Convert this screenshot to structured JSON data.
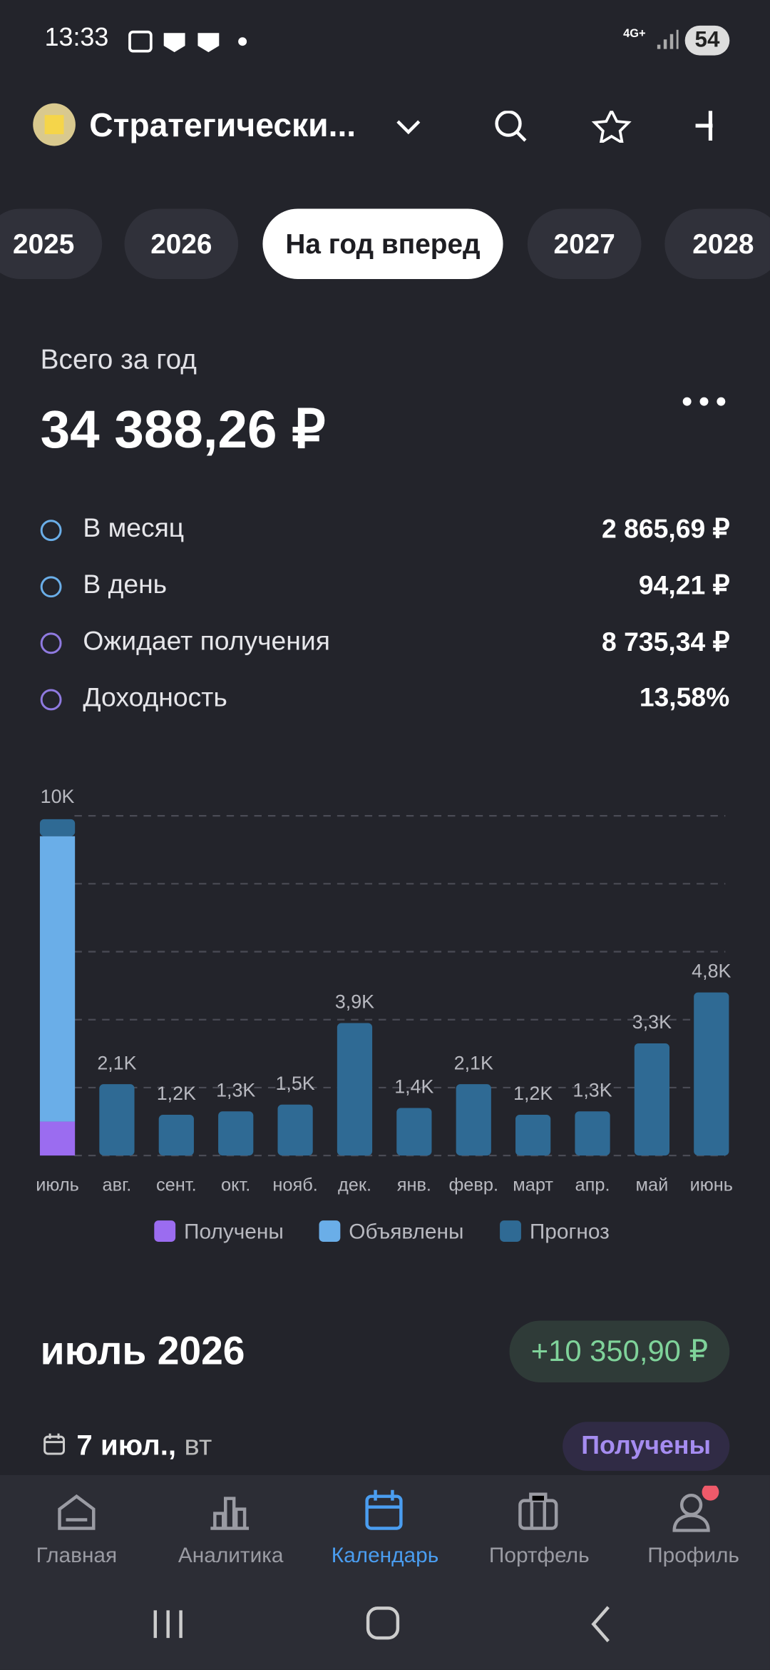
{
  "status": {
    "time": "13:33",
    "network": "4G+",
    "battery": "54"
  },
  "header": {
    "title": "Стратегически..."
  },
  "tabs": [
    "2025",
    "2026",
    "На год вперед",
    "2027",
    "2028"
  ],
  "summary": {
    "label": "Всего за год",
    "total": "34 388,26 ₽",
    "rows": [
      {
        "label": "В месяц",
        "value": "2 865,69 ₽"
      },
      {
        "label": "В день",
        "value": "94,21 ₽"
      },
      {
        "label": "Ожидает получения",
        "value": "8 735,34 ₽"
      },
      {
        "label": "Доходность",
        "value": "13,58%"
      }
    ]
  },
  "chart_data": {
    "type": "stacked_bar",
    "categories": [
      "июль",
      "авг.",
      "сент.",
      "окт.",
      "нояб.",
      "дек.",
      "янв.",
      "февр.",
      "март",
      "апр.",
      "май",
      "июнь"
    ],
    "series": [
      {
        "name": "Получены",
        "color": "#9b6cf0",
        "values": [
          1000,
          0,
          0,
          0,
          0,
          0,
          0,
          0,
          0,
          0,
          0,
          0
        ]
      },
      {
        "name": "Объявлены",
        "color": "#6aaee8",
        "values": [
          8400,
          0,
          0,
          0,
          0,
          0,
          0,
          0,
          0,
          0,
          0,
          0
        ]
      },
      {
        "name": "Прогноз",
        "color": "#2f6a94",
        "values": [
          500,
          2100,
          1200,
          1300,
          1500,
          3900,
          1400,
          2100,
          1200,
          1300,
          3300,
          4800
        ],
        "value_labels": [
          null,
          "2,1K",
          "1,2K",
          "1,3K",
          "1,5K",
          "3,9K",
          "1,4K",
          "2,1K",
          "1,2K",
          "1,3K",
          "3,3K",
          "4,8K"
        ]
      }
    ],
    "ylim": [
      0,
      10000
    ],
    "yticks": [
      {
        "value": 0,
        "label": null
      },
      {
        "value": 2000,
        "label": null
      },
      {
        "value": 4000,
        "label": null
      },
      {
        "value": 6000,
        "label": null
      },
      {
        "value": 8000,
        "label": null
      },
      {
        "value": 10000,
        "label": "10K"
      }
    ],
    "grid": true
  },
  "month": {
    "title": "июль 2026",
    "amount": "+10 350,90 ₽",
    "date": "7 июл.,",
    "weekday": "вт",
    "status": "Получены"
  },
  "nav": [
    "Главная",
    "Аналитика",
    "Календарь",
    "Портфель",
    "Профиль"
  ]
}
